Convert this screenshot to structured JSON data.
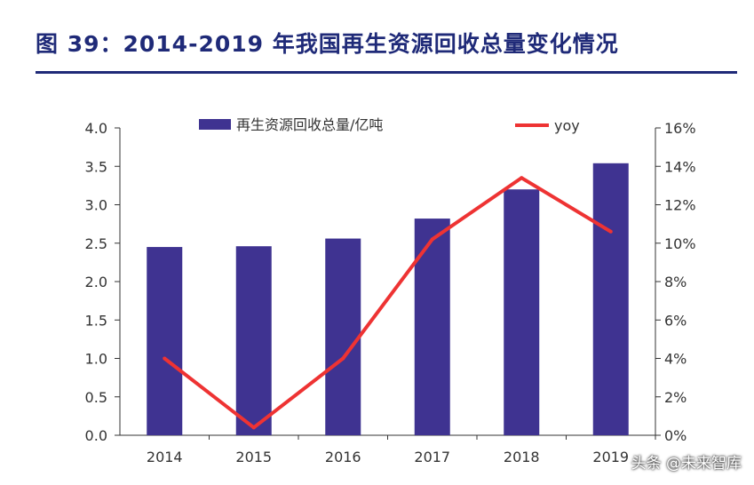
{
  "title": "图 39：2014-2019 年我国再生资源回收总量变化情况",
  "watermark": "头条 @未来智库",
  "colors": {
    "bar": "#3f3391",
    "line": "#ee3333",
    "title": "#1f2a78",
    "axis": "#333333"
  },
  "chart_data": {
    "type": "bar+line",
    "categories": [
      "2014",
      "2015",
      "2016",
      "2017",
      "2018",
      "2019"
    ],
    "series": [
      {
        "name": "再生资源回收总量/亿吨",
        "type": "bar",
        "axis": "left",
        "values": [
          2.45,
          2.46,
          2.56,
          2.82,
          3.2,
          3.54
        ]
      },
      {
        "name": "yoy",
        "type": "line",
        "axis": "right",
        "values": [
          4.0,
          0.4,
          4.0,
          10.2,
          13.4,
          10.6
        ]
      }
    ],
    "y_left": {
      "min": 0,
      "max": 4.0,
      "ticks": [
        "0.0",
        "0.5",
        "1.0",
        "1.5",
        "2.0",
        "2.5",
        "3.0",
        "3.5",
        "4.0"
      ]
    },
    "y_right": {
      "min": 0,
      "max": 16,
      "ticks": [
        "0%",
        "2%",
        "4%",
        "6%",
        "8%",
        "10%",
        "12%",
        "14%",
        "16%"
      ]
    },
    "legend_position": "top"
  }
}
